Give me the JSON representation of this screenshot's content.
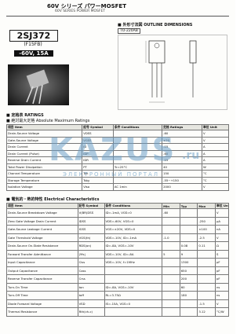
{
  "header": {
    "series": "60V シリーズ パワーMOSFET",
    "subtitle": "60V SERIES POWER MOSFET"
  },
  "product": {
    "part": "2SJ372",
    "code": "(F15FB)",
    "rating": "-60V, 15A"
  },
  "outline": {
    "title": "■ 外形寸法図 OUTLINE DIMENSIONS",
    "package": "TO-220AB"
  },
  "ratings": {
    "section": "■ 定格表 RATINGS",
    "title": "■ 絶対最大定格 Absolute Maximum Ratings",
    "header": [
      "項目 Item",
      "記号 Symbol",
      "条件 Conditions",
      "定格 Ratings",
      "単位 Unit"
    ],
    "rows": [
      [
        "Drain-Source Voltage",
        "VDSS",
        null,
        "-60",
        "V"
      ],
      [
        "Gate-Source Voltage",
        "VGSS",
        null,
        "±20",
        "V"
      ],
      [
        "Drain Current",
        "ID",
        null,
        "-15",
        "A"
      ],
      [
        "Drain Current (Pulse)",
        "IDP",
        null,
        "-60",
        "A"
      ],
      [
        "Reverse Drain Current",
        "IDR",
        null,
        "-15",
        "A"
      ],
      [
        "Total Power Dissipation",
        "PT",
        "Tc=25°C",
        "40",
        "W"
      ],
      [
        "Channel Temperature",
        "Tch",
        null,
        "150",
        "°C"
      ],
      [
        "Storage Temperature",
        "Tstg",
        null,
        "-55~+150",
        "°C"
      ],
      [
        "Isolation Voltage",
        "Viso",
        "AC 1min",
        "2000",
        "V"
      ]
    ]
  },
  "electrical": {
    "title": "■ 電気的・熱的特性 Electrical Characteristics",
    "header": [
      "項目 Item",
      "記号 Symbol",
      "条件 Conditions",
      "Min",
      "Typ",
      "Max",
      "単位 Unit"
    ],
    "rows": [
      [
        "Drain-Source Breakdown Voltage",
        "V(BR)DSS",
        "ID=-1mA, VGS=0",
        "-60",
        null,
        null,
        "V"
      ],
      [
        "Zero Gate Voltage Drain Current",
        "IDSS",
        "VDS=-60V, VGS=0",
        null,
        null,
        "-250",
        "μA"
      ],
      [
        "Gate-Source Leakage Current",
        "IGSS",
        "VGS=±20V, VDS=0",
        null,
        null,
        "±100",
        "nA"
      ],
      [
        "Gate Threshold Voltage",
        "VGS(th)",
        "VDS=-10V, ID=-1mA",
        "-1.0",
        null,
        "-2.5",
        "V"
      ],
      [
        "Drain-Source On-State Resistance",
        "RDS(on)",
        "ID=-8A, VGS=-10V",
        null,
        "0.08",
        "0.11",
        "Ω"
      ],
      [
        "Forward Transfer Admittance",
        "|Yfs|",
        "VDS=-10V, ID=-8A",
        "5",
        "9",
        null,
        "S"
      ],
      [
        "Input Capacitance",
        "Ciss",
        "VDS=-10V, f=1MHz",
        null,
        "1300",
        null,
        "pF"
      ],
      [
        "Output Capacitance",
        "Coss",
        null,
        null,
        "650",
        null,
        "pF"
      ],
      [
        "Reverse Transfer Capacitance",
        "Crss",
        null,
        null,
        "200",
        null,
        "pF"
      ],
      [
        "Turn-On Time",
        "ton",
        "ID=-8A, VGS=-10V",
        null,
        "60",
        null,
        "ns"
      ],
      [
        "Turn-Off Time",
        "toff",
        "RL=3.75Ω",
        null,
        "180",
        null,
        "ns"
      ],
      [
        "Diode Forward Voltage",
        "VSD",
        "IS=-15A, VGS=0",
        null,
        null,
        "-1.5",
        "V"
      ],
      [
        "Thermal Resistance",
        "Rth(ch-c)",
        null,
        null,
        null,
        "3.12",
        "°C/W"
      ]
    ]
  },
  "watermark": {
    "logo": "KAZUS",
    "domain": ".ru",
    "tagline": "ЭЛЕКТРОННЫЙ ПОРТАЛ"
  }
}
